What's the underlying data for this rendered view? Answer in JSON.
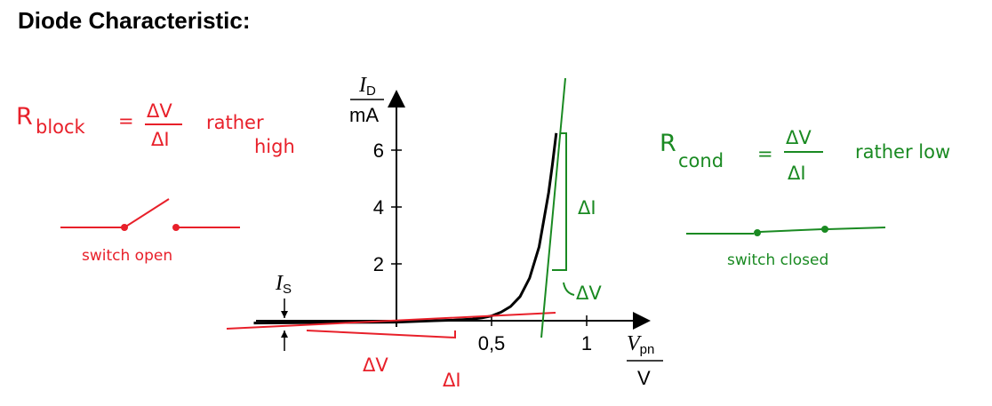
{
  "page_title": "Diode Characteristic:",
  "chart_data": {
    "type": "line",
    "ylabel": {
      "sym": "I",
      "sub": "D",
      "unit": "mA"
    },
    "xlabel": {
      "sym": "V",
      "sub": "pn",
      "unit": "V"
    },
    "xlim": [
      -1.45,
      1.25
    ],
    "ylim": [
      -0.3,
      8.6
    ],
    "x_ticks": [
      {
        "value": 0.5,
        "label": "0,5"
      },
      {
        "value": 1,
        "label": "1"
      }
    ],
    "y_ticks": [
      {
        "value": 2,
        "label": "2"
      },
      {
        "value": 4,
        "label": "4"
      },
      {
        "value": 6,
        "label": "6"
      }
    ],
    "series": [
      {
        "color": "#000000",
        "x": [
          -0.75,
          -0.5,
          -0.25,
          0,
          0.2,
          0.3,
          0.4,
          0.45,
          0.5,
          0.55,
          0.6,
          0.65,
          0.7,
          0.75,
          0.8,
          0.82,
          0.84
        ],
        "y": [
          -0.08,
          -0.07,
          -0.06,
          -0.05,
          0.0,
          0.02,
          0.06,
          0.1,
          0.17,
          0.3,
          0.5,
          0.85,
          1.5,
          2.6,
          4.5,
          5.5,
          6.6
        ]
      }
    ],
    "saturation_label": {
      "sym": "I",
      "sub": "S",
      "value": -0.05
    }
  },
  "annotations": {
    "red": {
      "color": "#e8202a",
      "r_block": "R",
      "r_block_sub": "block",
      "equals": "=",
      "fraction_top": "ΔV",
      "fraction_bottom": "ΔI",
      "rather": "rather",
      "high": "high",
      "switch_label": "switch open",
      "delta_v": "ΔV",
      "delta_i": "ΔI"
    },
    "green": {
      "color": "#1a8a22",
      "r_cond": "R",
      "r_cond_sub": "cond",
      "equals": "=",
      "fraction_top": "ΔV",
      "fraction_bottom": "ΔI",
      "rather_low": "rather low",
      "switch_label": "switch closed",
      "delta_i": "ΔI",
      "delta_v": "ΔV"
    }
  }
}
